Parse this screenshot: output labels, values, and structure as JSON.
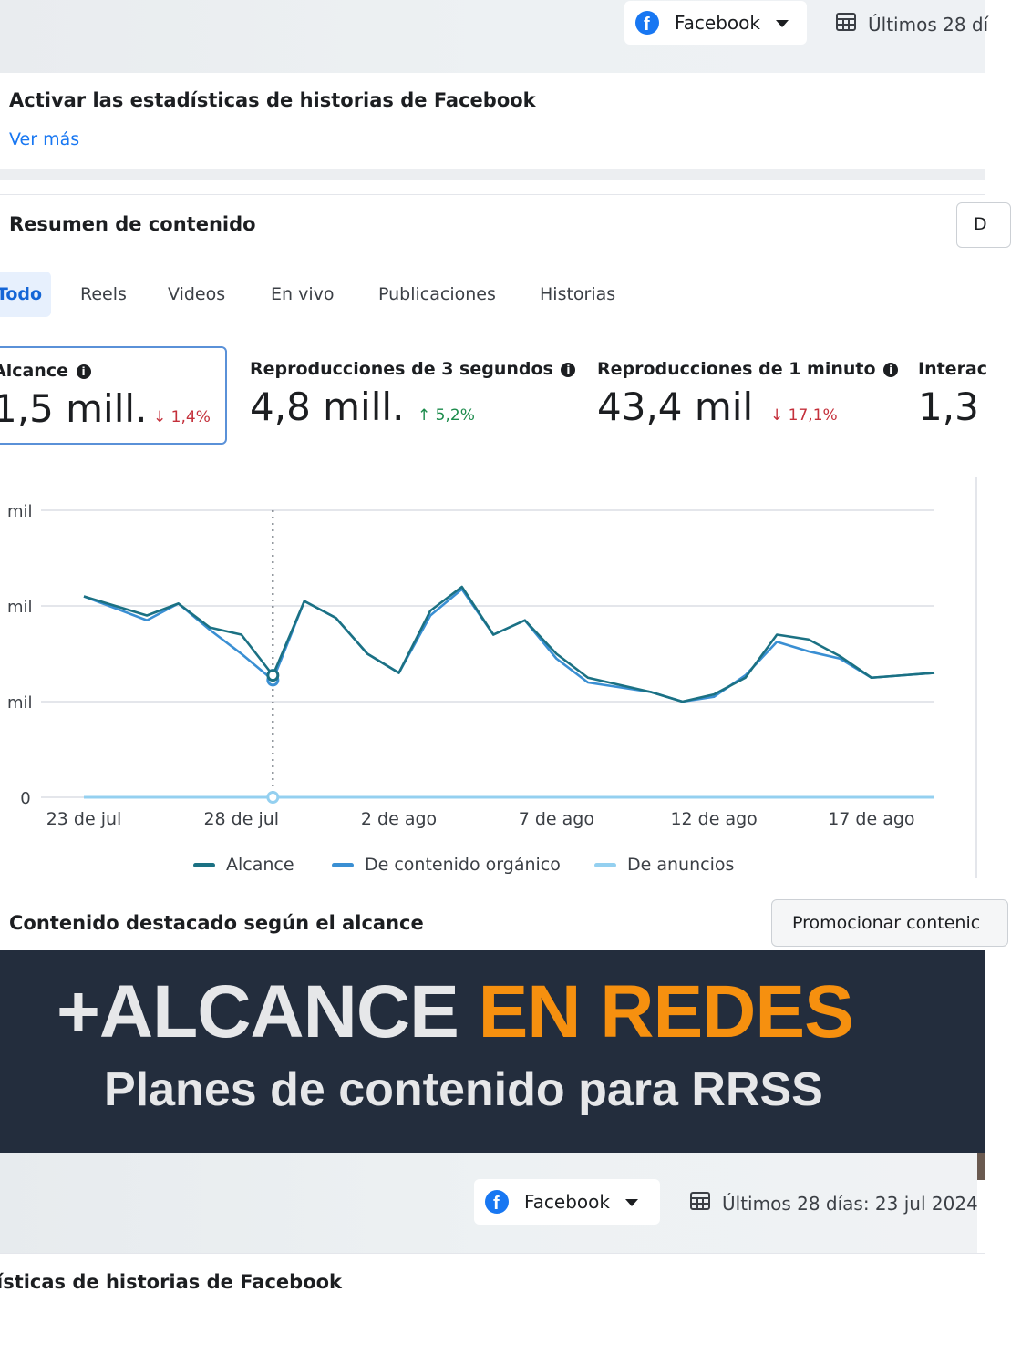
{
  "header": {
    "platform_label": "Facebook",
    "date_label": "Últimos 28 dí"
  },
  "stories_card": {
    "title": "Activar las estadísticas de historias de Facebook",
    "link": "Ver más"
  },
  "summary": {
    "title": "Resumen de contenido",
    "side_button": "D",
    "tabs": [
      "Todo",
      "Reels",
      "Videos",
      "En vivo",
      "Publicaciones",
      "Historias"
    ],
    "active_tab": "Todo"
  },
  "metrics": [
    {
      "label": "Alcance",
      "value": "1,5 mill.",
      "delta": "1,4%",
      "direction": "down"
    },
    {
      "label": "Reproducciones de 3 segundos",
      "value": "4,8 mill.",
      "delta": "5,2%",
      "direction": "up"
    },
    {
      "label": "Reproducciones de 1 minuto",
      "value": "43,4 mil",
      "delta": "17,1%",
      "direction": "down"
    },
    {
      "label": "Interac",
      "value": "1,3",
      "delta": "",
      "direction": ""
    }
  ],
  "chart_data": {
    "type": "line",
    "ylabel": "",
    "y_tick_labels": [
      "0",
      "mil",
      "mil",
      "mil"
    ],
    "y_ticks": [
      0,
      20,
      40,
      60
    ],
    "ylim": [
      0,
      60
    ],
    "x_tick_labels": [
      "23 de jul",
      "28 de jul",
      "2 de ago",
      "7 de ago",
      "12 de ago",
      "17 de ago"
    ],
    "grid": true,
    "legend_position": "bottom",
    "highlighted_day_index": 6,
    "series": [
      {
        "name": "Alcance",
        "color": "#1b7183",
        "values": [
          42,
          40,
          38,
          40.5,
          35.5,
          34,
          25.5,
          41,
          37.5,
          30,
          26,
          39,
          44,
          34,
          37,
          30,
          25,
          23.5,
          22,
          20,
          21.5,
          25,
          34,
          33,
          29.5,
          25,
          25.5,
          26
        ]
      },
      {
        "name": "De contenido orgánico",
        "color": "#3a8fd3",
        "values": [
          42,
          39.5,
          37,
          40.5,
          35,
          30,
          24.5,
          41,
          37.5,
          30,
          26,
          38,
          43.5,
          34,
          37,
          29,
          24,
          23,
          22,
          20,
          21,
          25.5,
          32.5,
          30.5,
          29,
          25,
          25.5,
          26
        ]
      },
      {
        "name": "De anuncios",
        "color": "#94d0f0",
        "values": [
          0,
          0,
          0,
          0,
          0,
          0,
          0,
          0,
          0,
          0,
          0,
          0,
          0,
          0,
          0,
          0,
          0,
          0,
          0,
          0,
          0,
          0,
          0,
          0,
          0,
          0,
          0,
          0
        ]
      }
    ]
  },
  "featured": {
    "title": "Contenido destacado según el alcance",
    "promote_button": "Promocionar contenic"
  },
  "banner": {
    "headline_white": "+ALCANCE",
    "headline_orange": "EN REDES",
    "subtitle": "Planes de contenido para RRSS",
    "colors": {
      "background": "#232d3d",
      "orange": "#f6900f",
      "white": "#e6e7e9"
    }
  },
  "bottom": {
    "platform_label": "Facebook",
    "date_label": "Últimos 28 días: 23 jul 2024",
    "card_title": "ísticas de historias de Facebook"
  }
}
